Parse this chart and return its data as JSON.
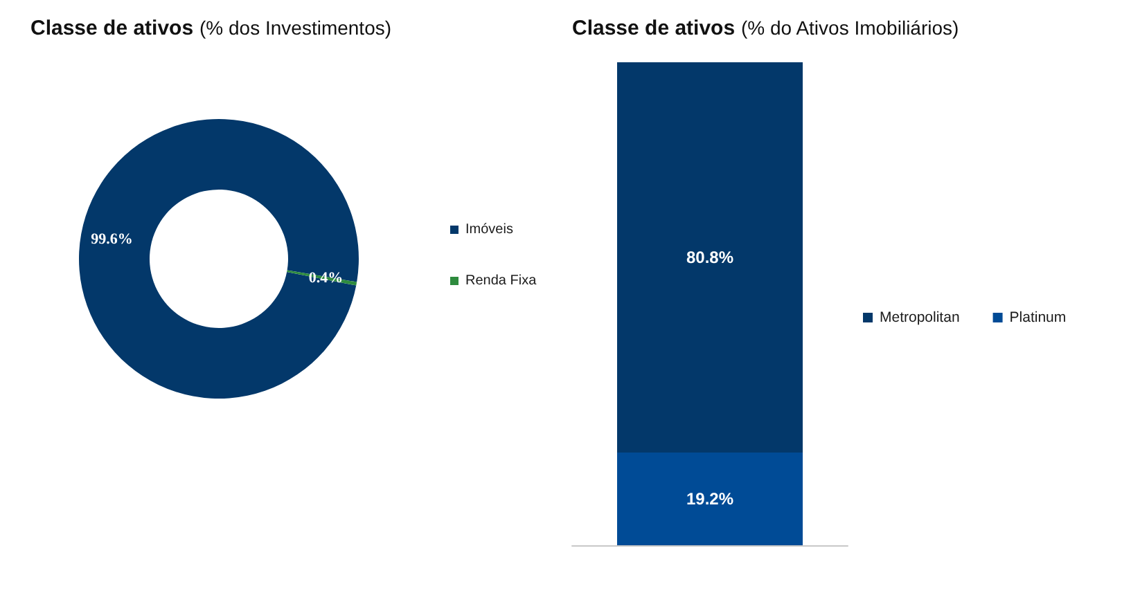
{
  "chart_data": [
    {
      "type": "donut",
      "title": "Classe de ativos",
      "subtitle": "(% dos Investimentos)",
      "categories": [
        "Imóveis",
        "Renda Fixa"
      ],
      "values": [
        99.6,
        0.4
      ],
      "colors": [
        "#03386a",
        "#2e8b3e"
      ],
      "value_labels": [
        "99.6%",
        "0.4%"
      ],
      "legend": "right"
    },
    {
      "type": "bar",
      "title": "Classe de ativos",
      "subtitle": "(% do Ativos Imobiliários)",
      "categories": [
        null
      ],
      "stacked": true,
      "series": [
        {
          "name": "Platinum",
          "color": "#004b96",
          "values": [
            19.2
          ],
          "value_labels": [
            "19.2%"
          ]
        },
        {
          "name": "Metropolitan",
          "color": "#03386a",
          "values": [
            80.8
          ],
          "value_labels": [
            "80.8%"
          ]
        }
      ],
      "legend": "right"
    }
  ]
}
